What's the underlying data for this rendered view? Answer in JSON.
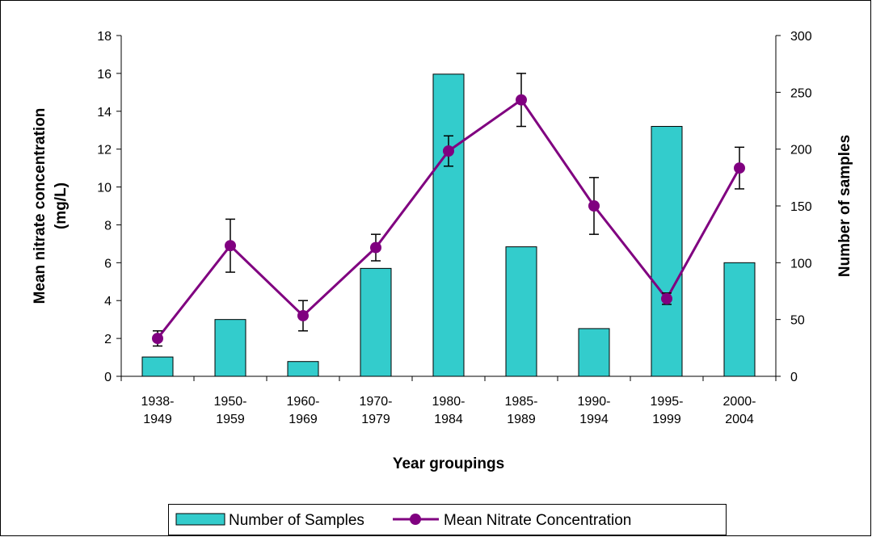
{
  "chart_data": {
    "type": "bar-line",
    "x_label": "Year groupings",
    "y_label": "Mean nitrate concentration\n(mg/L)",
    "y2_label": "Number of samples",
    "categories": [
      "1938-\n1949",
      "1950-\n1959",
      "1960-\n1969",
      "1970-\n1979",
      "1980-\n1984",
      "1985-\n1989",
      "1990-\n1994",
      "1995-\n1999",
      "2000-\n2004"
    ],
    "series": [
      {
        "name": "Number of Samples",
        "type": "bar",
        "axis": "y2",
        "color": "#33cccc",
        "values": [
          17,
          50,
          13,
          95,
          266,
          114,
          42,
          220,
          100
        ]
      },
      {
        "name": "Mean Nitrate Concentration",
        "type": "line",
        "axis": "y",
        "color": "#800080",
        "values": [
          2.0,
          6.9,
          3.2,
          6.8,
          11.9,
          14.6,
          9.0,
          4.1,
          11.0
        ],
        "errors": [
          0.4,
          1.4,
          0.8,
          0.7,
          0.8,
          1.4,
          1.5,
          0.3,
          1.1
        ]
      }
    ],
    "ylim": [
      0,
      18
    ],
    "yticks": [
      0,
      2,
      4,
      6,
      8,
      10,
      12,
      14,
      16,
      18
    ],
    "y2lim": [
      0,
      300
    ],
    "y2ticks": [
      0,
      50,
      100,
      150,
      200,
      250,
      300
    ],
    "legend": "bottom"
  }
}
